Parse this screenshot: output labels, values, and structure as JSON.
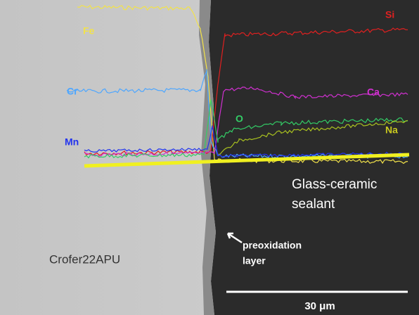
{
  "element_labels": [
    "Fe",
    "Si",
    "Cr",
    "Ca",
    "O",
    "Mn",
    "Na"
  ],
  "regions": {
    "sealant": [
      "Glass-ceramic",
      "sealant"
    ],
    "steel": "Crofer22APU",
    "layer": [
      "preoxidation",
      "layer"
    ]
  },
  "scale_bar": "30 μm"
}
